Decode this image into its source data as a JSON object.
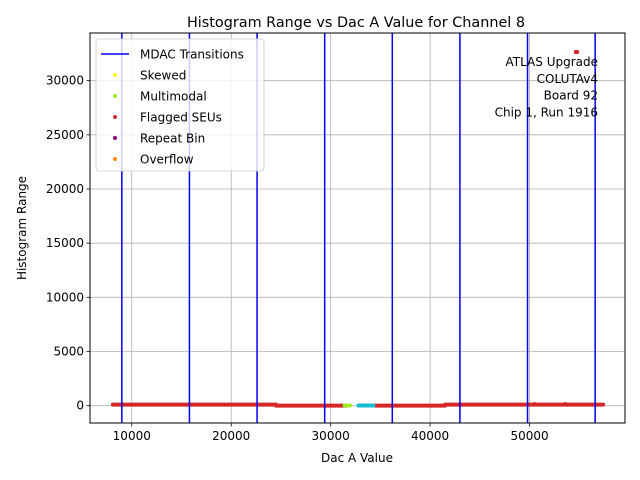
{
  "chart_data": {
    "type": "scatter",
    "title": "Histogram Range vs Dac A Value for Channel 8",
    "xlabel": "Dac A Value",
    "ylabel": "Histogram Range",
    "xlim": [
      5800,
      59600
    ],
    "ylim": [
      -1600,
      34400
    ],
    "xticks": [
      10000,
      20000,
      30000,
      40000,
      50000
    ],
    "xtick_labels": [
      "10000",
      "20000",
      "30000",
      "40000",
      "50000"
    ],
    "yticks": [
      0,
      5000,
      10000,
      15000,
      20000,
      25000,
      30000
    ],
    "ytick_labels": [
      "0",
      "5000",
      "10000",
      "15000",
      "20000",
      "25000",
      "30000"
    ],
    "grid": true,
    "legend_position": "top-left",
    "annotation": [
      "ATLAS Upgrade",
      "COLUTAv4",
      "Board 92",
      "Chip 1, Run 1916"
    ],
    "mdac_transitions": [
      9000,
      15800,
      22600,
      29400,
      36200,
      43000,
      49800,
      56600
    ],
    "colors": {
      "mdac": "#0000ff",
      "skewed": "#ffff00",
      "multimodal": "#9aef22",
      "flagged": "#d62728",
      "repeat": "#800080",
      "overflow": "#ff8c00",
      "cyan": "#17becf"
    },
    "legend": [
      {
        "label": "MDAC Transitions",
        "kind": "line",
        "color_key": "mdac"
      },
      {
        "label": "Skewed",
        "kind": "marker",
        "color_key": "skewed"
      },
      {
        "label": "Multimodal",
        "kind": "marker",
        "color_key": "multimodal"
      },
      {
        "label": "Flagged SEUs",
        "kind": "marker",
        "color_key": "flagged"
      },
      {
        "label": "Repeat Bin",
        "kind": "marker",
        "color_key": "repeat"
      },
      {
        "label": "Overflow",
        "kind": "marker",
        "color_key": "overflow"
      }
    ],
    "series": [
      {
        "name": "Flagged SEUs band 1",
        "color_key": "flagged",
        "x_range": [
          8100,
          24500
        ],
        "y": 100
      },
      {
        "name": "Flagged SEUs band 2",
        "color_key": "flagged",
        "x_range": [
          24500,
          31500
        ],
        "y": 0
      },
      {
        "name": "Flagged SEUs band 3",
        "color_key": "flagged",
        "x_range": [
          34500,
          41500
        ],
        "y": 0
      },
      {
        "name": "Flagged SEUs band 4",
        "color_key": "flagged",
        "x_range": [
          41500,
          57400
        ],
        "y": 100
      },
      {
        "name": "Cyan cluster",
        "color_key": "cyan",
        "x_range": [
          32800,
          34300
        ],
        "y": 20
      },
      {
        "name": "Multimodal points",
        "color_key": "multimodal",
        "x": [
          31400,
          31700,
          31950
        ],
        "y": [
          10,
          10,
          10
        ]
      },
      {
        "name": "Flagged outliers",
        "color_key": "flagged",
        "x": [
          50500,
          53600,
          54650,
          54800
        ],
        "y": [
          150,
          150,
          32650,
          32650
        ]
      }
    ]
  }
}
